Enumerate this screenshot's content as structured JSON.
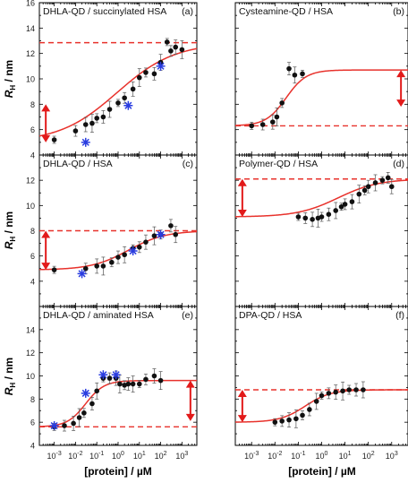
{
  "figure": {
    "y_label": "R",
    "y_label_subscript": "H",
    "y_label_unit": " / nm",
    "x_label": "[protein] / µM"
  },
  "chart_data": [
    {
      "type": "scatter",
      "panel": "(a)",
      "title": "DHLA-QD / succinylated HSA",
      "xscale": "log",
      "xlim": [
        0.0002,
        5000
      ],
      "ylim": [
        4,
        16
      ],
      "xticks": [
        "10^-3",
        "10^-2",
        "10^-1",
        "10^0",
        "10^1",
        "10^2",
        "10^3"
      ],
      "yticks": [
        4,
        6,
        8,
        10,
        12,
        14,
        16
      ],
      "xtick_labels_shown": false,
      "baseline": 5.0,
      "plateau": 12.85,
      "dashed_level": 12.85,
      "arrow": {
        "x": 0.0004,
        "from": 5.0,
        "to": 8.0
      },
      "fit": {
        "y0": 5.0,
        "ymax": 12.85,
        "ec50": 0.9,
        "hill": 0.32
      },
      "series": [
        {
          "marker": "dot",
          "x": [
            0.001,
            0.01,
            0.03,
            0.06,
            0.1,
            0.2,
            0.4,
            1,
            2,
            5,
            10,
            20,
            50,
            100,
            200,
            300,
            500,
            1000
          ],
          "y": [
            5.2,
            5.9,
            6.4,
            6.5,
            6.9,
            7.0,
            7.6,
            8.1,
            8.5,
            9.2,
            10.1,
            10.5,
            10.4,
            11.3,
            12.9,
            12.2,
            12.5,
            12.3
          ]
        },
        {
          "marker": "star",
          "x": [
            0.03,
            3,
            100
          ],
          "y": [
            5.0,
            7.9,
            11.0
          ]
        }
      ]
    },
    {
      "type": "scatter",
      "panel": "(b)",
      "title": "Cysteamine-QD / HSA",
      "xscale": "log",
      "xlim": [
        0.0002,
        5000
      ],
      "ylim": [
        4,
        16
      ],
      "xticks": [
        "10^-3",
        "10^-2",
        "10^-1",
        "10^0",
        "10^1",
        "10^2",
        "10^3"
      ],
      "xtick_labels_shown": false,
      "baseline": 6.3,
      "plateau": 10.7,
      "dashed_level": 6.3,
      "arrow": {
        "x": 2500,
        "from": 10.7,
        "to": 7.8
      },
      "fit": {
        "y0": 6.3,
        "ymax": 10.7,
        "ec50": 0.03,
        "hill": 1.0
      },
      "series": [
        {
          "marker": "dot",
          "x": [
            0.001,
            0.003,
            0.008,
            0.012,
            0.02,
            0.04,
            0.07,
            0.15
          ],
          "y": [
            6.3,
            6.4,
            6.6,
            7.0,
            8.1,
            10.8,
            10.3,
            10.4
          ]
        }
      ]
    },
    {
      "type": "scatter",
      "panel": "(c)",
      "title": "DHLA-QD / HSA",
      "xscale": "log",
      "xlim": [
        0.0002,
        5000
      ],
      "ylim": [
        2,
        14
      ],
      "xticks": [
        "10^-3",
        "10^-2",
        "10^-1",
        "10^0",
        "10^1",
        "10^2",
        "10^3"
      ],
      "yticks": [
        4,
        6,
        8,
        10,
        12
      ],
      "xtick_labels_shown": false,
      "baseline": 4.9,
      "plateau": 8.0,
      "dashed_level": 8.0,
      "arrow": {
        "x": 0.0004,
        "from": 4.9,
        "to": 8.0
      },
      "fit": {
        "y0": 4.9,
        "ymax": 8.0,
        "ec50": 3,
        "hill": 0.5
      },
      "series": [
        {
          "marker": "dot",
          "x": [
            0.001,
            0.03,
            0.1,
            0.2,
            0.5,
            1,
            2,
            5,
            10,
            20,
            50,
            100,
            300,
            500
          ],
          "y": [
            4.9,
            5.0,
            5.2,
            5.2,
            5.5,
            5.9,
            6.1,
            6.6,
            6.7,
            7.1,
            7.6,
            7.7,
            8.4,
            7.7
          ]
        },
        {
          "marker": "star",
          "x": [
            0.02,
            5,
            100
          ],
          "y": [
            4.6,
            6.4,
            7.7
          ]
        }
      ]
    },
    {
      "type": "scatter",
      "panel": "(d)",
      "title": "Polymer-QD / HSA",
      "xscale": "log",
      "xlim": [
        0.0002,
        5000
      ],
      "ylim": [
        2,
        14
      ],
      "xticks": [
        "10^-3",
        "10^-2",
        "10^-1",
        "10^0",
        "10^1",
        "10^2",
        "10^3"
      ],
      "xtick_labels_shown": false,
      "baseline": 9.1,
      "plateau": 12.1,
      "dashed_level": 12.1,
      "arrow": {
        "x": 0.0004,
        "from": 12.1,
        "to": 9.1
      },
      "fit": {
        "y0": 9.1,
        "ymax": 12.1,
        "ec50": 5,
        "hill": 0.5
      },
      "series": [
        {
          "marker": "dot",
          "x": [
            0.1,
            0.2,
            0.4,
            0.7,
            1,
            2,
            4,
            7,
            10,
            20,
            40,
            70,
            100,
            200,
            400,
            700,
            1000
          ],
          "y": [
            9.1,
            9.0,
            8.9,
            9.0,
            9.1,
            9.3,
            9.6,
            9.9,
            10.1,
            10.3,
            10.9,
            11.2,
            11.5,
            11.8,
            12.0,
            12.2,
            11.5
          ]
        }
      ]
    },
    {
      "type": "scatter",
      "panel": "(e)",
      "title": "DHLA-QD / aminated HSA",
      "xscale": "log",
      "xlim": [
        0.0002,
        5000
      ],
      "ylim": [
        4,
        16
      ],
      "xticks": [
        "10^-3",
        "10^-2",
        "10^-1",
        "10^0",
        "10^1",
        "10^2",
        "10^3"
      ],
      "yticks": [
        4,
        6,
        8,
        10,
        12,
        14
      ],
      "xtick_labels_shown": true,
      "baseline": 5.6,
      "plateau": 9.6,
      "dashed_level": 5.6,
      "arrow": {
        "x": 2500,
        "from": 9.6,
        "to": 6.1
      },
      "fit": {
        "y0": 5.6,
        "ymax": 9.6,
        "ec50": 0.03,
        "hill": 1.0
      },
      "series": [
        {
          "marker": "dot",
          "x": [
            0.001,
            0.003,
            0.008,
            0.015,
            0.025,
            0.06,
            0.1,
            0.2,
            0.4,
            0.8,
            1.2,
            2,
            3,
            5,
            10,
            20,
            50,
            100
          ],
          "y": [
            5.6,
            5.7,
            5.9,
            6.4,
            6.8,
            7.6,
            8.7,
            9.8,
            9.8,
            9.8,
            9.3,
            9.2,
            9.3,
            9.3,
            9.3,
            9.7,
            10.0,
            9.6
          ]
        },
        {
          "marker": "star",
          "x": [
            0.001,
            0.03,
            0.2,
            0.8
          ],
          "y": [
            5.7,
            8.5,
            10.1,
            10.1
          ]
        }
      ]
    },
    {
      "type": "scatter",
      "panel": "(f)",
      "title": "DPA-QD / HSA",
      "xscale": "log",
      "xlim": [
        0.0002,
        5000
      ],
      "ylim": [
        4,
        16
      ],
      "xticks": [
        "10^-3",
        "10^-2",
        "10^-1",
        "10^0",
        "10^1",
        "10^2",
        "10^3"
      ],
      "xtick_labels_shown": true,
      "baseline": 6.0,
      "plateau": 8.8,
      "dashed_level": 8.8,
      "arrow": {
        "x": 0.0004,
        "from": 8.8,
        "to": 6.0
      },
      "fit": {
        "y0": 6.0,
        "ymax": 8.8,
        "ec50": 0.2,
        "hill": 0.8
      },
      "series": [
        {
          "marker": "dot",
          "x": [
            0.01,
            0.02,
            0.04,
            0.08,
            0.15,
            0.3,
            0.6,
            1,
            2,
            4,
            8,
            15,
            30,
            60
          ],
          "y": [
            6.0,
            6.1,
            6.2,
            6.3,
            6.6,
            7.1,
            7.8,
            8.3,
            8.5,
            8.6,
            8.7,
            8.8,
            8.8,
            8.8
          ]
        }
      ]
    }
  ],
  "colors": {
    "fit": "#e8322c",
    "dashed": "#e8322c",
    "arrow": "#e21a1a",
    "point": "#111111",
    "star": "#2a3de0",
    "axis": "#000000"
  }
}
